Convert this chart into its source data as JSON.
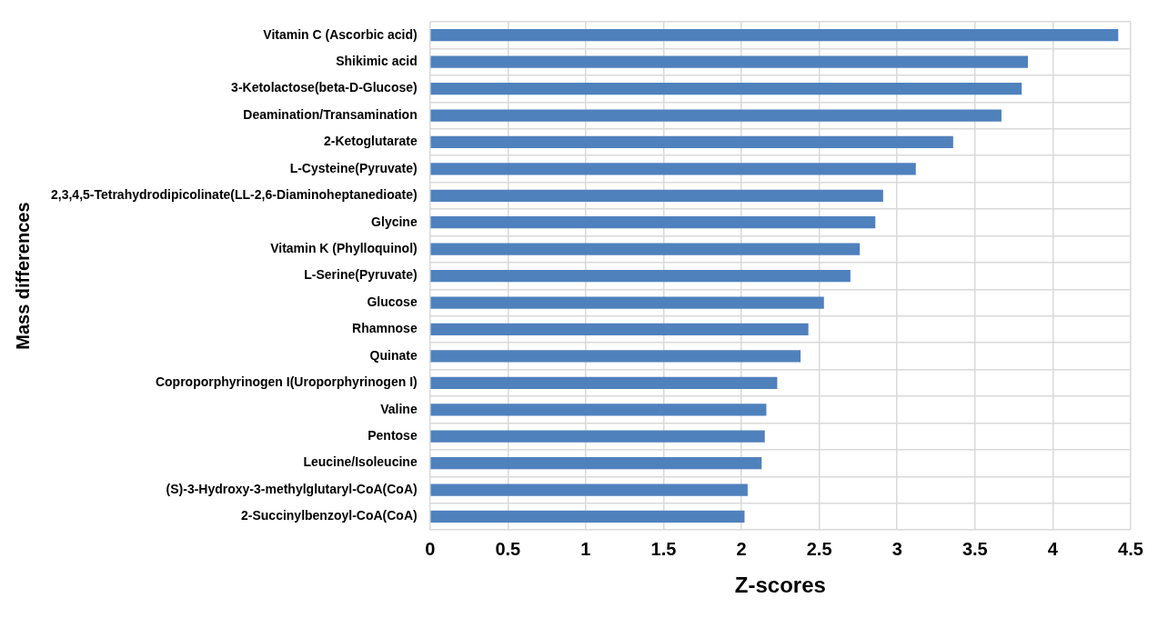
{
  "chart_data": {
    "type": "bar",
    "orientation": "horizontal",
    "xlabel": "Z-scores",
    "ylabel": "Mass differences",
    "categories": [
      "Vitamin C (Ascorbic acid)",
      "Shikimic acid",
      "3-Ketolactose(beta-D-Glucose)",
      "Deamination/Transamination",
      "2-Ketoglutarate",
      "L-Cysteine(Pyruvate)",
      "2,3,4,5-Tetrahydrodipicolinate(LL-2,6-Diaminoheptanedioate)",
      "Glycine",
      "Vitamin K (Phylloquinol)",
      "L-Serine(Pyruvate)",
      "Glucose",
      "Rhamnose",
      "Quinate",
      "Coproporphyrinogen I(Uroporphyrinogen I)",
      "Valine",
      "Pentose",
      "Leucine/Isoleucine",
      "(S)-3-Hydroxy-3-methylglutaryl-CoA(CoA)",
      "2-Succinylbenzoyl-CoA(CoA)"
    ],
    "values": [
      4.42,
      3.84,
      3.8,
      3.67,
      3.36,
      3.12,
      2.91,
      2.86,
      2.76,
      2.7,
      2.53,
      2.43,
      2.38,
      2.23,
      2.16,
      2.15,
      2.13,
      2.04,
      2.02
    ],
    "color": "#4f81bd",
    "xlim": [
      0,
      4.5
    ],
    "xticks": [
      0,
      0.5,
      1,
      1.5,
      2,
      2.5,
      3,
      3.5,
      4,
      4.5
    ],
    "grid": true
  }
}
